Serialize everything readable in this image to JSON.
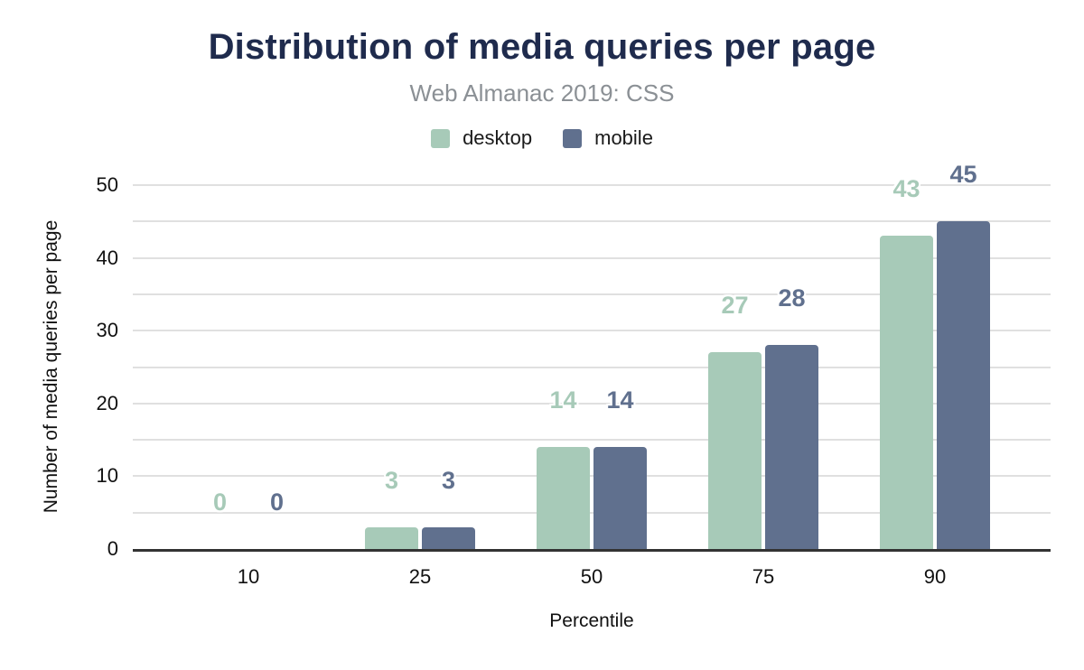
{
  "chart_data": {
    "type": "bar",
    "title": "Distribution of media queries per page",
    "subtitle": "Web Almanac 2019: CSS",
    "categories": [
      "10",
      "25",
      "50",
      "75",
      "90"
    ],
    "series": [
      {
        "name": "desktop",
        "color": "#a7cab8",
        "values": [
          0,
          3,
          14,
          27,
          43
        ]
      },
      {
        "name": "mobile",
        "color": "#60708e",
        "values": [
          0,
          3,
          14,
          28,
          45
        ]
      }
    ],
    "xlabel": "Percentile",
    "ylabel": "Number of media queries per page",
    "ylim": [
      0,
      50
    ],
    "ytick_step": 10,
    "grid_step": 5,
    "grid": true,
    "legend_position": "top",
    "data_labels": true
  },
  "colors": {
    "title": "#1f2b4d",
    "subtitle": "#8b9095",
    "gridline": "#e0e0e0",
    "baseline": "#333333",
    "tick_label": "#111111"
  }
}
